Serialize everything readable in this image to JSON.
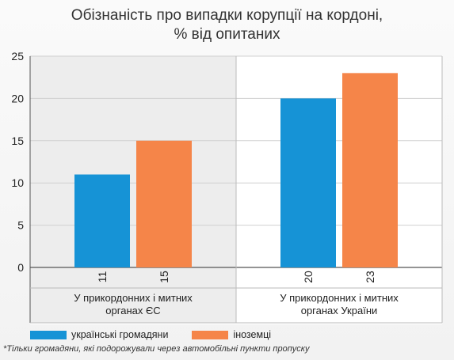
{
  "title_lines": [
    "Обізнаність про випадки корупції на кордоні,",
    "% від опитаних"
  ],
  "chart_data": {
    "type": "bar",
    "title": "Обізнаність про випадки корупції на кордоні, % від опитаних",
    "categories": [
      [
        "У прикордонних і митних",
        "органах ЄС"
      ],
      [
        "У прикордонних і митних",
        "органах України"
      ]
    ],
    "series": [
      {
        "name": "українські громадяни",
        "values": [
          11,
          20
        ],
        "color": "#1693d6"
      },
      {
        "name": "іноземці",
        "values": [
          15,
          23
        ],
        "color": "#f58549"
      }
    ],
    "ylim": [
      0,
      25
    ],
    "yticks": [
      0,
      5,
      10,
      15,
      20,
      25
    ],
    "data_labels": [
      [
        "11",
        "15"
      ],
      [
        "20",
        "23"
      ]
    ],
    "grid": true,
    "legend_position": "bottom-left",
    "shaded_category_background": "#ededed"
  },
  "footnote": "*Тільки громадяни, які подорожували через автомобільні пункти пропуску"
}
